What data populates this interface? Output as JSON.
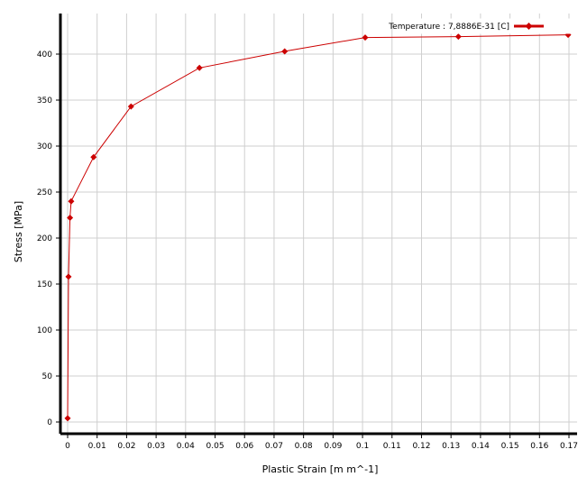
{
  "chart_data": {
    "type": "line",
    "xlabel": "Plastic Strain  [m m^-1]",
    "ylabel": "Stress  [MPa]",
    "xlim": [
      0,
      0.17
    ],
    "ylim": [
      0,
      430
    ],
    "xticks": [
      "0",
      "0.01",
      "0.02",
      "0.03",
      "0.04",
      "0.05",
      "0.06",
      "0.07",
      "0.08",
      "0.09",
      "0.1",
      "0.11",
      "0.12",
      "0.13",
      "0.14",
      "0.15",
      "0.16",
      "0.17"
    ],
    "yticks": [
      "0",
      "50",
      "100",
      "150",
      "200",
      "250",
      "300",
      "350",
      "400"
    ],
    "grid": true,
    "legend_position": "top-right",
    "series": [
      {
        "name": "Temperature : 7,8886E-31 [C]",
        "color": "#cc0000",
        "marker": "diamond",
        "points": [
          {
            "x": 0.0,
            "y": 4
          },
          {
            "x": 0.0003,
            "y": 158
          },
          {
            "x": 0.0008,
            "y": 222
          },
          {
            "x": 0.0012,
            "y": 240
          },
          {
            "x": 0.0088,
            "y": 288
          },
          {
            "x": 0.0215,
            "y": 343
          },
          {
            "x": 0.0447,
            "y": 385
          },
          {
            "x": 0.0736,
            "y": 403
          },
          {
            "x": 0.1009,
            "y": 418
          },
          {
            "x": 0.1325,
            "y": 419
          },
          {
            "x": 0.1697,
            "y": 421
          }
        ]
      }
    ]
  }
}
